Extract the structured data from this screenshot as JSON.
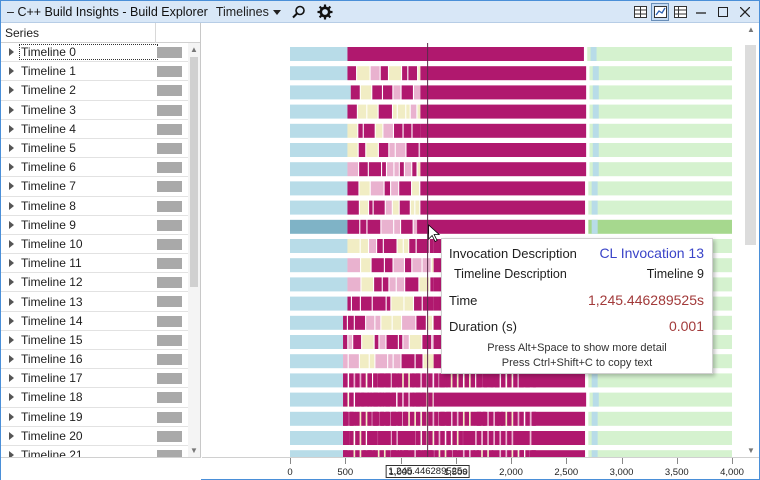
{
  "titlebar": {
    "app_title": "C++ Build Insights - Build Explorer",
    "view_selector": "Timelines"
  },
  "series_header": "Series",
  "series": [
    "Timeline 0",
    "Timeline 1",
    "Timeline 2",
    "Timeline 3",
    "Timeline 4",
    "Timeline 5",
    "Timeline 6",
    "Timeline 7",
    "Timeline 8",
    "Timeline 9",
    "Timeline 10",
    "Timeline 11",
    "Timeline 12",
    "Timeline 13",
    "Timeline 14",
    "Timeline 15",
    "Timeline 16",
    "Timeline 17",
    "Timeline 18",
    "Timeline 19",
    "Timeline 20",
    "Timeline 21"
  ],
  "axis": {
    "ticks": [
      "0",
      "500",
      "1,000",
      "1,500",
      "2,000",
      "2,500",
      "3,000",
      "3,500",
      "4,000"
    ],
    "cursor_time": "1,245.446289525s"
  },
  "tooltip": {
    "invocation_key": "Invocation Description",
    "invocation_val": "CL Invocation 13",
    "timeline_key": "Timeline Description",
    "timeline_val": "Timeline 9",
    "time_key": "Time",
    "time_val": "1,245.446289525s",
    "duration_key": "Duration (s)",
    "duration_val": "0.001",
    "hint_1": "Press Alt+Space to show more detail",
    "hint_2": "Press Ctrl+Shift+C to copy text"
  },
  "colors": {
    "magenta": "#b0186e",
    "light_blue": "#b8dce8",
    "light_green": "#d5f2cf",
    "light_yellow": "#f1edc4",
    "pink": "#e9b2cf",
    "selected_green": "#a6d88e",
    "accent": "#3a44c8"
  },
  "timeline_data": {
    "x_range": [
      0,
      4000
    ],
    "cursor_x": 1245.4,
    "rows": [
      {
        "prefix_end": 520,
        "main_start": 520,
        "main_end": 2660,
        "tail_end": 4000
      },
      {
        "prefix_end": 520,
        "main_start": 1180,
        "main_end": 2680,
        "tail_end": 4000
      },
      {
        "prefix_end": 550,
        "main_start": 1180,
        "main_end": 2680,
        "tail_end": 4000
      },
      {
        "prefix_end": 520,
        "main_start": 1180,
        "main_end": 2680,
        "tail_end": 4000
      },
      {
        "prefix_end": 520,
        "main_start": 1180,
        "main_end": 2680,
        "tail_end": 4000
      },
      {
        "prefix_end": 520,
        "main_start": 1180,
        "main_end": 2680,
        "tail_end": 4000
      },
      {
        "prefix_end": 520,
        "main_start": 1180,
        "main_end": 2680,
        "tail_end": 4000
      },
      {
        "prefix_end": 520,
        "main_start": 1180,
        "main_end": 2670,
        "tail_end": 4000
      },
      {
        "prefix_end": 520,
        "main_start": 1180,
        "main_end": 2670,
        "tail_end": 4000
      },
      {
        "prefix_end": 520,
        "main_start": 1150,
        "main_end": 2670,
        "tail_end": 4000
      },
      {
        "prefix_end": 520,
        "main_start": 1300,
        "main_end": 2670,
        "tail_end": 4000
      },
      {
        "prefix_end": 520,
        "main_start": 1300,
        "main_end": 2670,
        "tail_end": 4000
      },
      {
        "prefix_end": 520,
        "main_start": 1300,
        "main_end": 2670,
        "tail_end": 4000
      },
      {
        "prefix_end": 520,
        "main_start": 1300,
        "main_end": 2670,
        "tail_end": 4000
      },
      {
        "prefix_end": 480,
        "main_start": 1300,
        "main_end": 2670,
        "tail_end": 4000
      },
      {
        "prefix_end": 480,
        "main_start": 1300,
        "main_end": 2670,
        "tail_end": 4000
      },
      {
        "prefix_end": 480,
        "main_start": 1300,
        "main_end": 2670,
        "tail_end": 4000
      },
      {
        "prefix_end": 480,
        "main_start": 2200,
        "main_end": 2670,
        "tail_end": 4000
      },
      {
        "prefix_end": 480,
        "main_start": 1300,
        "main_end": 2680,
        "tail_end": 4000
      },
      {
        "prefix_end": 480,
        "main_start": 2200,
        "main_end": 2670,
        "tail_end": 4000
      },
      {
        "prefix_end": 480,
        "main_start": 2200,
        "main_end": 2670,
        "tail_end": 4000
      },
      {
        "prefix_end": 480,
        "main_start": 2200,
        "main_end": 2670,
        "tail_end": 4000
      }
    ]
  }
}
